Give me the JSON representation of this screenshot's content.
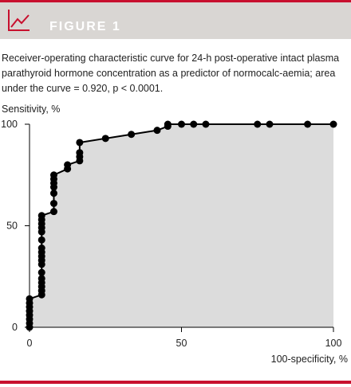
{
  "header": {
    "label": "FIGURE 1",
    "icon": "line-chart-icon",
    "accent_color": "#c8102e"
  },
  "caption": "Receiver-operating characteristic curve for 24-h post-operative intact plasma parathyroid hormone concentration as a predictor of normocalc-aemia; area under the curve = 0.920, p < 0.0001.",
  "chart_data": {
    "type": "line",
    "xlabel": "100-specificity, %",
    "ylabel": "Sensitivity, %",
    "xlim": [
      0,
      100
    ],
    "ylim": [
      0,
      100
    ],
    "x_ticks": [
      0,
      50,
      100
    ],
    "y_ticks": [
      0,
      50,
      100
    ],
    "grid": false,
    "fill_under_curve": true,
    "fill_color": "#dcdcdc",
    "line_color": "#000000",
    "series": [
      {
        "points": [
          [
            0,
            0
          ],
          [
            0,
            2
          ],
          [
            0,
            4
          ],
          [
            0,
            6
          ],
          [
            0,
            8
          ],
          [
            0,
            10
          ],
          [
            0,
            12
          ],
          [
            0,
            14
          ],
          [
            4,
            16
          ],
          [
            4,
            18
          ],
          [
            4,
            20
          ],
          [
            4,
            22
          ],
          [
            4,
            24
          ],
          [
            4,
            27
          ],
          [
            4,
            31
          ],
          [
            4,
            33
          ],
          [
            4,
            35
          ],
          [
            4,
            37
          ],
          [
            4,
            39
          ],
          [
            4,
            43
          ],
          [
            4,
            47
          ],
          [
            4,
            49
          ],
          [
            4,
            51
          ],
          [
            4,
            53
          ],
          [
            4,
            55
          ],
          [
            8,
            57
          ],
          [
            8,
            61
          ],
          [
            8,
            66
          ],
          [
            8,
            69
          ],
          [
            8,
            71
          ],
          [
            8,
            73
          ],
          [
            8,
            75
          ],
          [
            12.5,
            78
          ],
          [
            12.5,
            80
          ],
          [
            16.5,
            82
          ],
          [
            16.5,
            84
          ],
          [
            16.5,
            86
          ],
          [
            16.5,
            91
          ],
          [
            25,
            93
          ],
          [
            33.5,
            95
          ],
          [
            42,
            97
          ],
          [
            45.5,
            99
          ],
          [
            45.5,
            100
          ],
          [
            50,
            100
          ],
          [
            54,
            100
          ],
          [
            58,
            100
          ],
          [
            75,
            100
          ],
          [
            79,
            100
          ],
          [
            91.5,
            100
          ],
          [
            100,
            100
          ]
        ]
      }
    ]
  }
}
